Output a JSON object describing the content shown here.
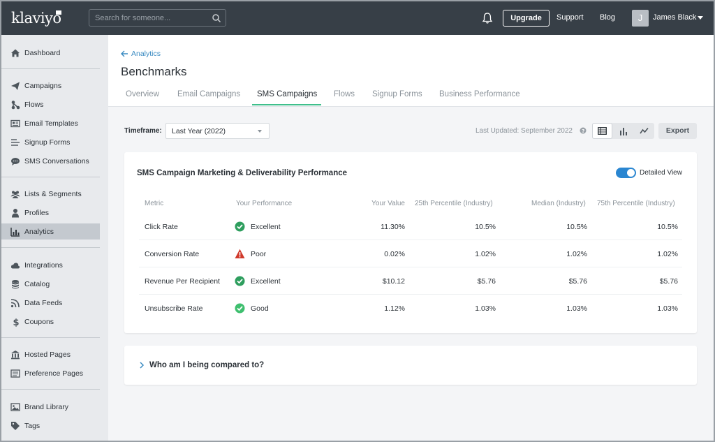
{
  "app": {
    "logo": "klaviyo"
  },
  "topbar": {
    "search_placeholder": "Search for someone...",
    "upgrade_label": "Upgrade",
    "support_label": "Support",
    "blog_label": "Blog",
    "avatar_initial": "J",
    "user_name": "James Black"
  },
  "sidebar": {
    "items": [
      {
        "label": "Dashboard",
        "icon": "home-icon"
      },
      {
        "label": "Campaigns",
        "icon": "paper-plane-icon"
      },
      {
        "label": "Flows",
        "icon": "flows-icon"
      },
      {
        "label": "Email Templates",
        "icon": "email-template-icon"
      },
      {
        "label": "Signup Forms",
        "icon": "signup-forms-icon"
      },
      {
        "label": "SMS Conversations",
        "icon": "chat-bubble-icon"
      },
      {
        "label": "Lists & Segments",
        "icon": "users-group-icon"
      },
      {
        "label": "Profiles",
        "icon": "person-icon"
      },
      {
        "label": "Analytics",
        "icon": "bar-chart-icon",
        "active": true
      },
      {
        "label": "Integrations",
        "icon": "cloud-icon"
      },
      {
        "label": "Catalog",
        "icon": "database-icon"
      },
      {
        "label": "Data Feeds",
        "icon": "rss-icon"
      },
      {
        "label": "Coupons",
        "icon": "dollar-icon"
      },
      {
        "label": "Hosted Pages",
        "icon": "bank-icon"
      },
      {
        "label": "Preference Pages",
        "icon": "list-page-icon"
      },
      {
        "label": "Brand Library",
        "icon": "image-icon"
      },
      {
        "label": "Tags",
        "icon": "tag-icon"
      }
    ]
  },
  "header": {
    "back_label": "Analytics",
    "title": "Benchmarks",
    "tabs": [
      {
        "label": "Overview"
      },
      {
        "label": "Email Campaigns"
      },
      {
        "label": "SMS Campaigns",
        "active": true
      },
      {
        "label": "Flows"
      },
      {
        "label": "Signup Forms"
      },
      {
        "label": "Business Performance"
      }
    ]
  },
  "controls": {
    "timeframe_label": "Timeframe:",
    "timeframe_value": "Last Year (2022)",
    "last_updated": "Last Updated: September 2022",
    "export_label": "Export"
  },
  "card": {
    "title": "SMS Campaign Marketing & Deliverability Performance",
    "toggle_label": "Detailed View",
    "columns": [
      "Metric",
      "Your Performance",
      "Your Value",
      "25th Percentile (Industry)",
      "Median (Industry)",
      "75th Percentile (Industry)"
    ],
    "rows": [
      {
        "metric": "Click Rate",
        "performance": "Excellent",
        "status": "excellent",
        "value": "11.30%",
        "p25": "10.5%",
        "median": "10.5%",
        "p75": "10.5%"
      },
      {
        "metric": "Conversion Rate",
        "performance": "Poor",
        "status": "poor",
        "value": "0.02%",
        "p25": "1.02%",
        "median": "1.02%",
        "p75": "1.02%"
      },
      {
        "metric": "Revenue Per Recipient",
        "performance": "Excellent",
        "status": "excellent",
        "value": "$10.12",
        "p25": "$5.76",
        "median": "$5.76",
        "p75": "$5.76"
      },
      {
        "metric": "Unsubscribe Rate",
        "performance": "Good",
        "status": "good",
        "value": "1.12%",
        "p25": "1.03%",
        "median": "1.03%",
        "p75": "1.03%"
      }
    ]
  },
  "compare": {
    "title": "Who am I being compared to?"
  },
  "colors": {
    "excellent": "#2e9e5e",
    "good": "#3fbf6f",
    "poor": "#d0392b",
    "accent": "#2a86d1",
    "tab_underline": "#3fbf8c"
  }
}
